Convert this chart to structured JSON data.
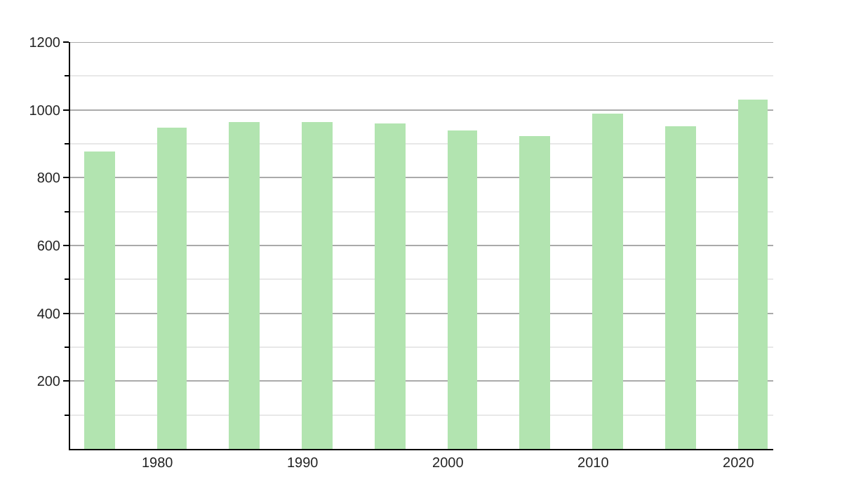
{
  "chart_data": {
    "type": "bar",
    "x": [
      1976,
      1981,
      1986,
      1991,
      1996,
      2001,
      2006,
      2011,
      2016,
      2021
    ],
    "values": [
      877,
      947,
      964,
      964,
      960,
      939,
      923,
      989,
      952,
      1030
    ],
    "color": "#b2e4b0",
    "xlim": [
      1974,
      2022.4
    ],
    "xticks": [
      1980,
      1990,
      2000,
      2010,
      2020
    ],
    "ylim": [
      0,
      1200
    ],
    "yticks": [
      {
        "value": 100,
        "label": null
      },
      200,
      {
        "value": 300,
        "label": null
      },
      400,
      {
        "value": 500,
        "label": null
      },
      600,
      {
        "value": 700,
        "label": null
      },
      800,
      {
        "value": 900,
        "label": null
      },
      1000,
      {
        "value": 1100,
        "label": null
      },
      1200
    ],
    "grid": "y"
  }
}
